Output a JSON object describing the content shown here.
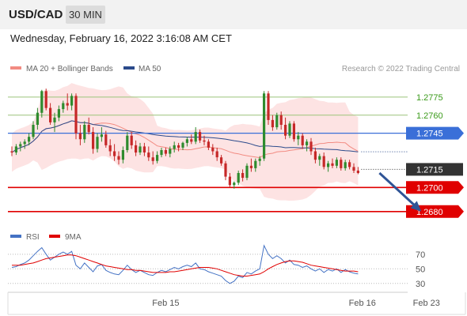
{
  "header": {
    "symbol": "USD/CAD",
    "timeframe": "30 MIN",
    "datetime": "Wednesday, February 16, 2022 3:16:08 AM CET"
  },
  "legend": {
    "ma20": {
      "label": "MA 20 + Bollinger Bands",
      "color": "#f28b82"
    },
    "ma50": {
      "label": "MA 50",
      "color": "#2b4a8b"
    },
    "copyright": "Research © 2022 Trading Central"
  },
  "colors": {
    "up": "#2e8b2e",
    "down": "#c62828",
    "band": "#fde3e3",
    "resistance": "#9bc47a",
    "pivot": "#3a6fd8",
    "support": "#e00000",
    "current": "#333333",
    "arrow": "#2f5496",
    "rsi": "#4472c4",
    "rsi_ma": "#e00000"
  },
  "chart_data": [
    {
      "type": "candlestick",
      "title": "USD/CAD 30 MIN",
      "ylim": [
        1.2672,
        1.279
      ],
      "x_labels": [
        {
          "label": "Feb 15",
          "index": 36
        },
        {
          "label": "Feb 16",
          "index": 82
        },
        {
          "label": "Feb 23",
          "index": 97
        }
      ],
      "levels": [
        {
          "label": "1.2775",
          "value": 1.2775,
          "kind": "resistance"
        },
        {
          "label": "1.2760",
          "value": 1.276,
          "kind": "resistance"
        },
        {
          "label": "1.2745",
          "value": 1.2745,
          "kind": "pivot"
        },
        {
          "label": "1.2715",
          "value": 1.2715,
          "kind": "current"
        },
        {
          "label": "1.2700",
          "value": 1.27,
          "kind": "support"
        },
        {
          "label": "1.2680",
          "value": 1.268,
          "kind": "support"
        }
      ],
      "target": {
        "from_index": 86,
        "from_value": 1.2712,
        "to_index": 95.5,
        "to_value": 1.2681
      },
      "candles": [
        [
          1.273,
          1.2734,
          1.2726,
          1.2729
        ],
        [
          1.2729,
          1.2736,
          1.2727,
          1.2734
        ],
        [
          1.2734,
          1.2738,
          1.273,
          1.2736
        ],
        [
          1.2736,
          1.274,
          1.2732,
          1.2738
        ],
        [
          1.2738,
          1.2745,
          1.2735,
          1.2742
        ],
        [
          1.2742,
          1.2755,
          1.274,
          1.2752
        ],
        [
          1.2752,
          1.2766,
          1.2748,
          1.2762
        ],
        [
          1.2762,
          1.2781,
          1.2758,
          1.278
        ],
        [
          1.278,
          1.2782,
          1.2764,
          1.2766
        ],
        [
          1.2766,
          1.277,
          1.2752,
          1.2754
        ],
        [
          1.2754,
          1.2762,
          1.2746,
          1.2758
        ],
        [
          1.2758,
          1.2768,
          1.2755,
          1.2765
        ],
        [
          1.2765,
          1.2772,
          1.2762,
          1.277
        ],
        [
          1.277,
          1.2778,
          1.2764,
          1.2768
        ],
        [
          1.2768,
          1.2778,
          1.2764,
          1.2776
        ],
        [
          1.2776,
          1.2778,
          1.274,
          1.2745
        ],
        [
          1.2745,
          1.2752,
          1.2735,
          1.274
        ],
        [
          1.274,
          1.2755,
          1.2737,
          1.2752
        ],
        [
          1.2752,
          1.2758,
          1.2744,
          1.2746
        ],
        [
          1.2746,
          1.275,
          1.2728,
          1.2732
        ],
        [
          1.2732,
          1.2745,
          1.2729,
          1.2742
        ],
        [
          1.2742,
          1.275,
          1.2738,
          1.2744
        ],
        [
          1.2744,
          1.2747,
          1.2733,
          1.2735
        ],
        [
          1.2735,
          1.274,
          1.2726,
          1.273
        ],
        [
          1.273,
          1.2736,
          1.2722,
          1.2726
        ],
        [
          1.2726,
          1.273,
          1.2719,
          1.2723
        ],
        [
          1.2723,
          1.2734,
          1.272,
          1.2731
        ],
        [
          1.2731,
          1.2746,
          1.2729,
          1.2743
        ],
        [
          1.2743,
          1.2746,
          1.2732,
          1.2735
        ],
        [
          1.2735,
          1.2739,
          1.2726,
          1.2729
        ],
        [
          1.2729,
          1.2737,
          1.2727,
          1.2734
        ],
        [
          1.2734,
          1.2737,
          1.2726,
          1.2729
        ],
        [
          1.2729,
          1.2734,
          1.2722,
          1.2725
        ],
        [
          1.2725,
          1.273,
          1.2719,
          1.2722
        ],
        [
          1.2722,
          1.273,
          1.272,
          1.2727
        ],
        [
          1.2727,
          1.2733,
          1.2725,
          1.2731
        ],
        [
          1.2731,
          1.2733,
          1.2726,
          1.2728
        ],
        [
          1.2728,
          1.2734,
          1.2725,
          1.2732
        ],
        [
          1.2732,
          1.2738,
          1.2729,
          1.2735
        ],
        [
          1.2735,
          1.2737,
          1.273,
          1.2733
        ],
        [
          1.2733,
          1.2738,
          1.2731,
          1.2737
        ],
        [
          1.2737,
          1.2742,
          1.2734,
          1.274
        ],
        [
          1.274,
          1.2744,
          1.2736,
          1.2738
        ],
        [
          1.2738,
          1.275,
          1.2736,
          1.2746
        ],
        [
          1.2746,
          1.2748,
          1.2737,
          1.2739
        ],
        [
          1.2739,
          1.2743,
          1.2735,
          1.2738
        ],
        [
          1.2738,
          1.274,
          1.2731,
          1.2733
        ],
        [
          1.2733,
          1.2736,
          1.2727,
          1.273
        ],
        [
          1.273,
          1.2733,
          1.2722,
          1.2725
        ],
        [
          1.2725,
          1.2727,
          1.2718,
          1.272
        ],
        [
          1.272,
          1.2722,
          1.2706,
          1.2709
        ],
        [
          1.2709,
          1.2712,
          1.27,
          1.2702
        ],
        [
          1.2702,
          1.2705,
          1.2699,
          1.2704
        ],
        [
          1.2704,
          1.2714,
          1.2702,
          1.2712
        ],
        [
          1.2712,
          1.2715,
          1.2705,
          1.2708
        ],
        [
          1.2708,
          1.272,
          1.2706,
          1.2718
        ],
        [
          1.2718,
          1.2724,
          1.2713,
          1.2716
        ],
        [
          1.2716,
          1.2724,
          1.2713,
          1.2722
        ],
        [
          1.2722,
          1.2726,
          1.2718,
          1.2724
        ],
        [
          1.2724,
          1.278,
          1.2722,
          1.2778
        ],
        [
          1.2778,
          1.278,
          1.2752,
          1.2756
        ],
        [
          1.2756,
          1.276,
          1.2747,
          1.275
        ],
        [
          1.275,
          1.2762,
          1.2748,
          1.276
        ],
        [
          1.276,
          1.2763,
          1.2748,
          1.2752
        ],
        [
          1.2752,
          1.2758,
          1.274,
          1.2743
        ],
        [
          1.2743,
          1.2755,
          1.2741,
          1.2753
        ],
        [
          1.2753,
          1.2755,
          1.2738,
          1.274
        ],
        [
          1.274,
          1.2746,
          1.2735,
          1.2743
        ],
        [
          1.2743,
          1.2745,
          1.2732,
          1.2735
        ],
        [
          1.2735,
          1.274,
          1.273,
          1.2738
        ],
        [
          1.2738,
          1.2741,
          1.2727,
          1.273
        ],
        [
          1.273,
          1.2733,
          1.272,
          1.2723
        ],
        [
          1.2723,
          1.2728,
          1.2718,
          1.2726
        ],
        [
          1.2726,
          1.2729,
          1.2715,
          1.2717
        ],
        [
          1.2717,
          1.2722,
          1.2713,
          1.272
        ],
        [
          1.272,
          1.2724,
          1.2716,
          1.2718
        ],
        [
          1.2718,
          1.2725,
          1.2716,
          1.2723
        ],
        [
          1.2723,
          1.2725,
          1.2714,
          1.2716
        ],
        [
          1.2716,
          1.2723,
          1.2714,
          1.2721
        ],
        [
          1.2721,
          1.2723,
          1.2715,
          1.2717
        ],
        [
          1.2717,
          1.272,
          1.2712,
          1.2714
        ],
        [
          1.2714,
          1.2717,
          1.2711,
          1.2712
        ]
      ]
    },
    {
      "type": "line",
      "series": [
        {
          "name": "RSI",
          "color": "#4472c4",
          "values": [
            52,
            53,
            56,
            58,
            62,
            68,
            74,
            79,
            70,
            62,
            66,
            70,
            73,
            70,
            74,
            55,
            50,
            58,
            52,
            46,
            54,
            56,
            48,
            45,
            43,
            42,
            48,
            55,
            49,
            45,
            48,
            45,
            42,
            41,
            45,
            48,
            46,
            49,
            52,
            50,
            53,
            55,
            53,
            58,
            50,
            49,
            46,
            44,
            42,
            40,
            34,
            30,
            33,
            40,
            38,
            45,
            43,
            47,
            50,
            82,
            70,
            64,
            68,
            64,
            58,
            62,
            56,
            55,
            52,
            54,
            50,
            47,
            50,
            45,
            49,
            47,
            50,
            45,
            49,
            46,
            44,
            43
          ]
        },
        {
          "name": "9MA",
          "color": "#e00000",
          "values": [
            55,
            55,
            55,
            56,
            57,
            58,
            60,
            62,
            64,
            65,
            66,
            67,
            68,
            69,
            69,
            68,
            66,
            64,
            62,
            60,
            58,
            56,
            54,
            53,
            52,
            51,
            50,
            49,
            49,
            48,
            48,
            47,
            46,
            45,
            45,
            45,
            45,
            46,
            46,
            47,
            48,
            49,
            50,
            51,
            52,
            52,
            52,
            51,
            50,
            48,
            46,
            44,
            42,
            41,
            40,
            40,
            41,
            42,
            43,
            46,
            50,
            53,
            56,
            58,
            60,
            61,
            61,
            60,
            59,
            57,
            55,
            54,
            53,
            52,
            51,
            50,
            49,
            48,
            47,
            47,
            47,
            46
          ]
        }
      ],
      "ylim": [
        20,
        85
      ],
      "ticks": [
        {
          "label": "70",
          "value": 70
        },
        {
          "label": "50",
          "value": 50
        },
        {
          "label": "30",
          "value": 30
        }
      ],
      "reference_lines": [
        70,
        50,
        30
      ]
    }
  ]
}
